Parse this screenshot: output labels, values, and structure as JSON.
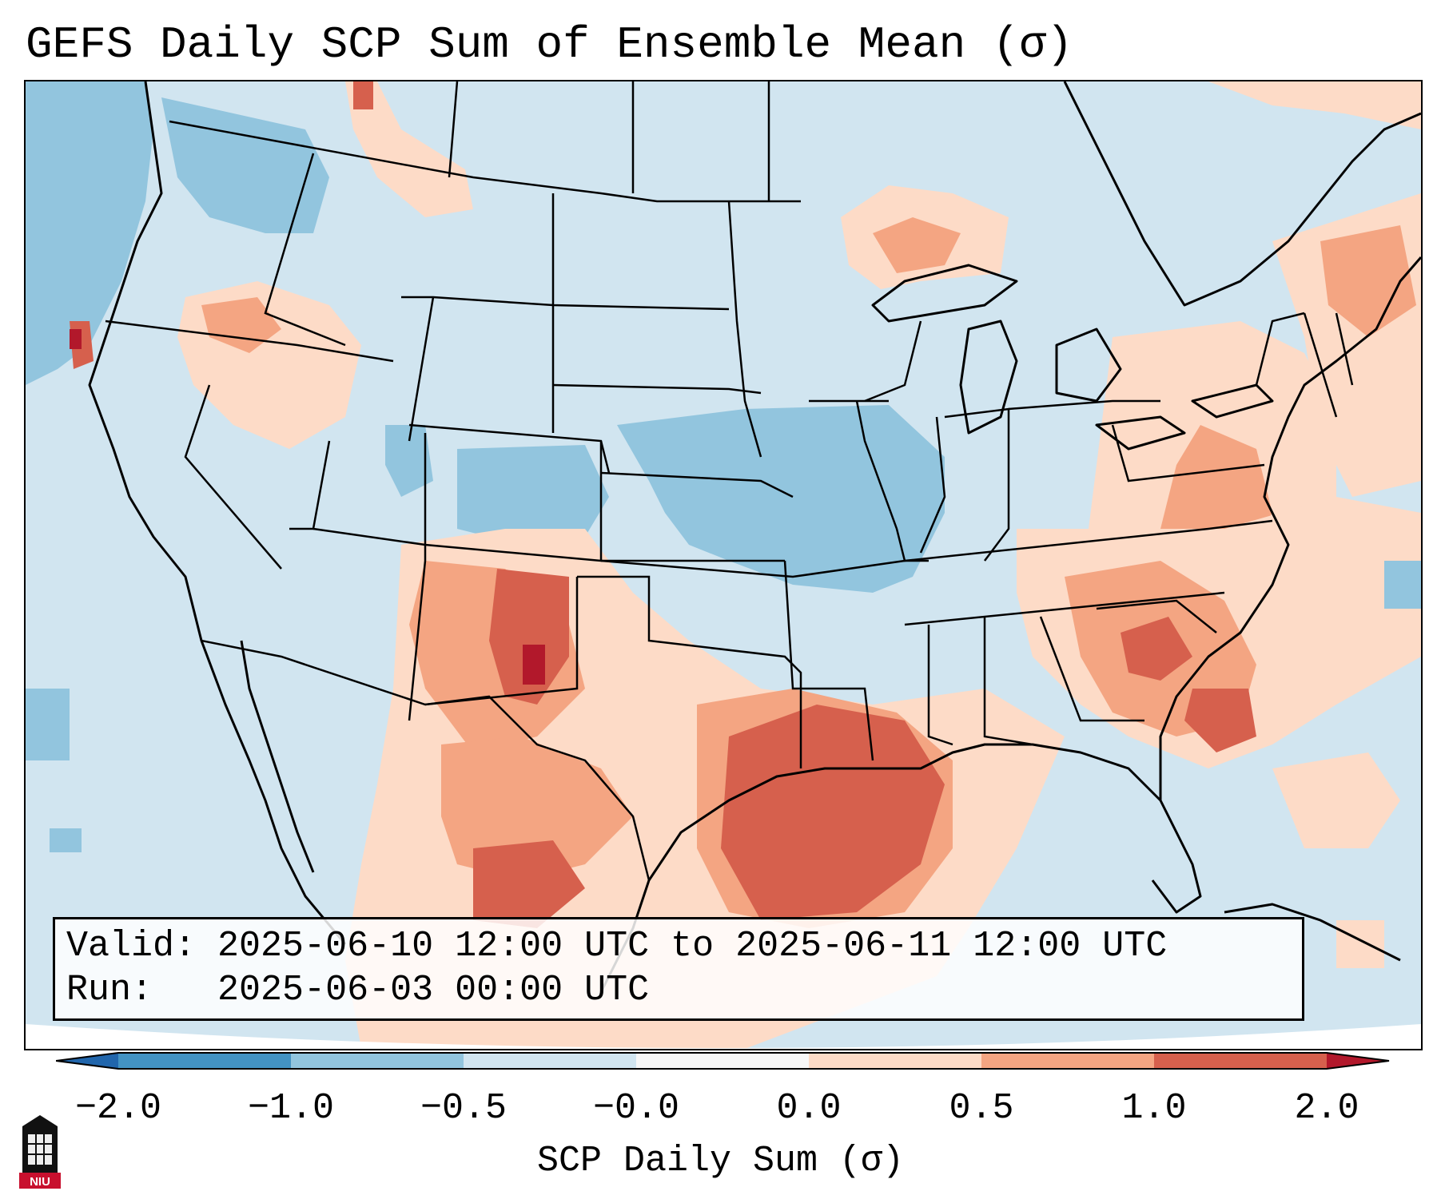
{
  "title": "GEFS Daily SCP Sum of Ensemble Mean (σ)",
  "info": {
    "valid_label": "Valid:",
    "valid_text": "2025-06-10 12:00 UTC to 2025-06-11 12:00 UTC",
    "run_label": "Run:",
    "run_text": "2025-06-03 00:00 UTC"
  },
  "colorbar": {
    "label": "SCP Daily Sum (σ)",
    "ticks": [
      "−2.0",
      "−1.0",
      "−0.5",
      "−0.0",
      "0.0",
      "0.5",
      "1.0",
      "2.0"
    ],
    "colors": [
      "#4393c3",
      "#92c5de",
      "#d1e5f0",
      "#f7f7f7",
      "#fddbc7",
      "#f4a582",
      "#d6604d"
    ],
    "under_color": "#2166ac",
    "over_color": "#b2182b"
  },
  "map_colors": {
    "base": "#d1e5f0",
    "light_blue": "#92c5de",
    "light_red": "#fddbc7",
    "mid_red": "#f4a582",
    "red": "#d6604d",
    "dark_red": "#b2182b",
    "white": "#f7f7f7"
  },
  "logo": {
    "text": "NIU",
    "color": "#c8102e"
  }
}
